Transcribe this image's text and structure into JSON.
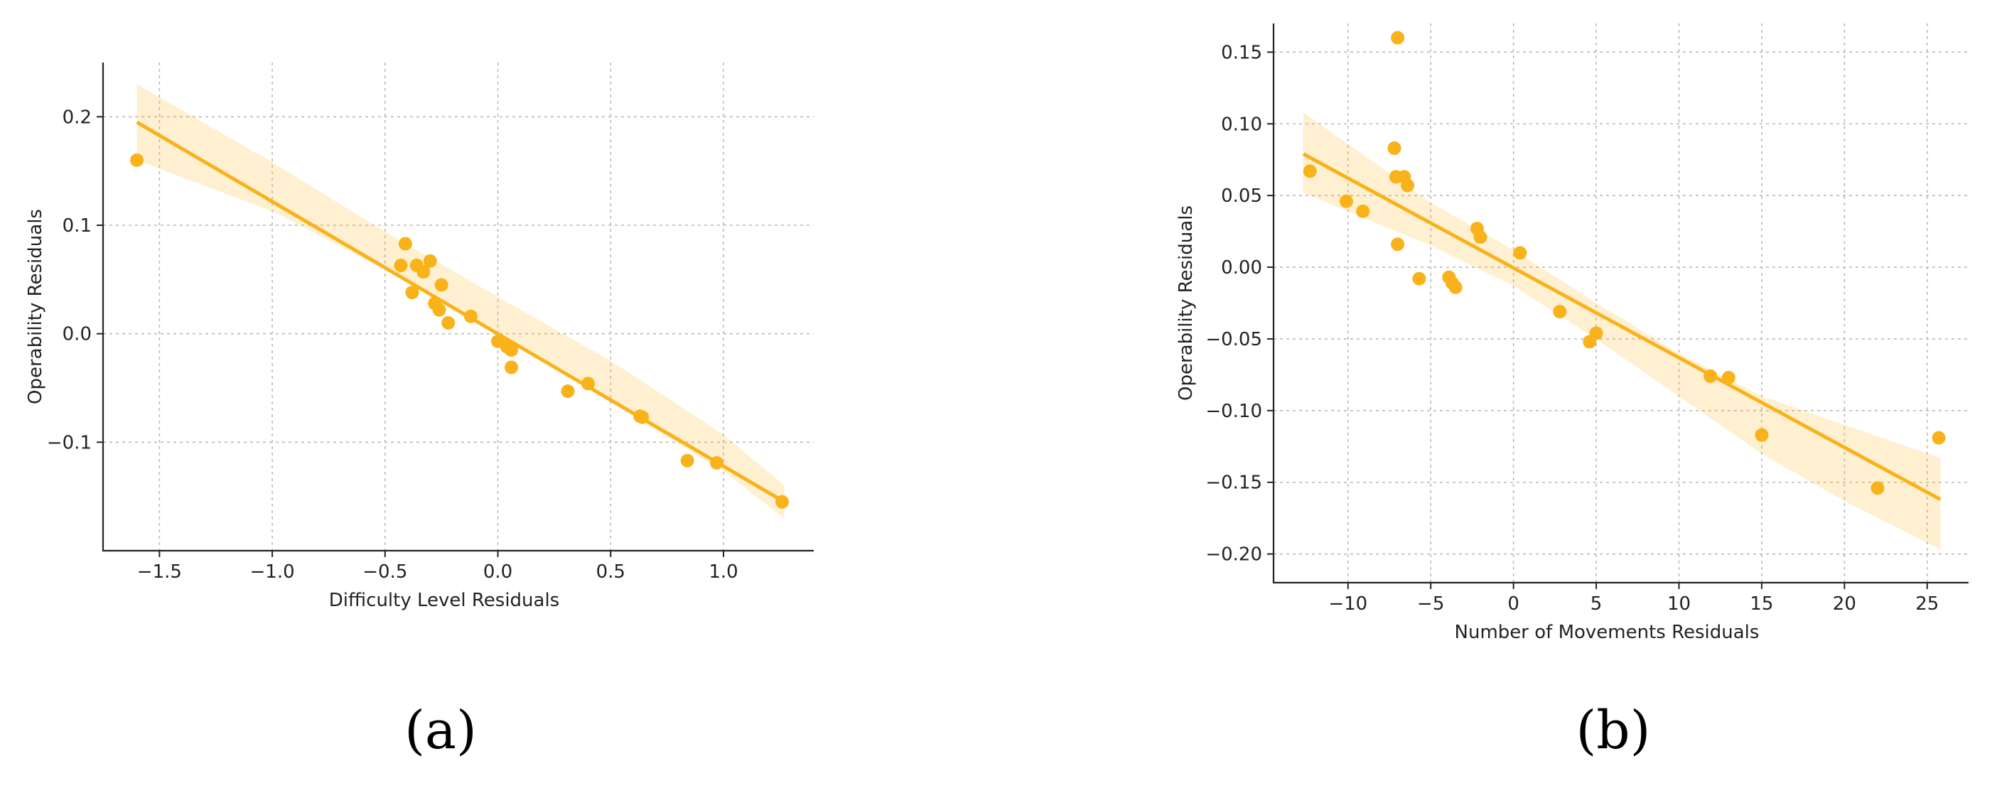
{
  "chart_data": [
    {
      "type": "scatter",
      "panel_label": "(a)",
      "xlabel": "Difficulty Level Residuals",
      "ylabel": "Operability Residuals",
      "xlim": [
        -1.75,
        1.4
      ],
      "ylim": [
        -0.2,
        0.25
      ],
      "xticks": [
        -1.5,
        -1.0,
        -0.5,
        0.0,
        0.5,
        1.0
      ],
      "xtick_labels": [
        "−1.5",
        "−1.0",
        "−0.5",
        "0.0",
        "0.5",
        "1.0"
      ],
      "yticks": [
        -0.1,
        0.0,
        0.1,
        0.2
      ],
      "ytick_labels": [
        "−0.1",
        "0.0",
        "0.1",
        "0.2"
      ],
      "grid": true,
      "color": "#F9B21A",
      "regression_line": [
        [
          -1.6,
          0.195
        ],
        [
          1.27,
          -0.155
        ]
      ],
      "confidence_band": {
        "x": [
          -1.6,
          -1.0,
          -0.5,
          0.0,
          0.5,
          1.0,
          1.27
        ],
        "upper": [
          0.23,
          0.158,
          0.094,
          0.034,
          -0.025,
          -0.093,
          -0.14
        ],
        "lower": [
          0.16,
          0.113,
          0.059,
          0.0,
          -0.063,
          -0.127,
          -0.17
        ]
      },
      "points": [
        [
          -1.6,
          0.16
        ],
        [
          -0.43,
          0.063
        ],
        [
          -0.41,
          0.083
        ],
        [
          -0.38,
          0.038
        ],
        [
          -0.36,
          0.063
        ],
        [
          -0.33,
          0.057
        ],
        [
          -0.3,
          0.067
        ],
        [
          -0.28,
          0.028
        ],
        [
          -0.26,
          0.022
        ],
        [
          -0.25,
          0.045
        ],
        [
          -0.22,
          0.01
        ],
        [
          -0.12,
          0.016
        ],
        [
          0.0,
          -0.007
        ],
        [
          0.04,
          -0.012
        ],
        [
          0.06,
          -0.015
        ],
        [
          0.05,
          -0.013
        ],
        [
          0.06,
          -0.031
        ],
        [
          0.31,
          -0.053
        ],
        [
          0.4,
          -0.046
        ],
        [
          0.63,
          -0.076
        ],
        [
          0.64,
          -0.077
        ],
        [
          0.84,
          -0.117
        ],
        [
          0.97,
          -0.119
        ],
        [
          1.26,
          -0.155
        ]
      ]
    },
    {
      "type": "scatter",
      "panel_label": "(b)",
      "xlabel": "Number of Movements Residuals",
      "ylabel": "Operability Residuals",
      "xlim": [
        -14.5,
        27.5
      ],
      "ylim": [
        -0.22,
        0.17
      ],
      "xticks": [
        -10,
        -5,
        0,
        5,
        10,
        15,
        20,
        25
      ],
      "xtick_labels": [
        "−10",
        "−5",
        "0",
        "5",
        "10",
        "15",
        "20",
        "25"
      ],
      "yticks": [
        -0.2,
        -0.15,
        -0.1,
        -0.05,
        0.0,
        0.05,
        0.1,
        0.15
      ],
      "ytick_labels": [
        "−0.20",
        "−0.15",
        "−0.10",
        "−0.05",
        "0.00",
        "0.05",
        "0.10",
        "0.15"
      ],
      "grid": true,
      "color": "#F9B21A",
      "regression_line": [
        [
          -12.7,
          0.079
        ],
        [
          25.8,
          -0.162
        ]
      ],
      "confidence_band": {
        "x": [
          -12.7,
          -5.0,
          0.0,
          5.0,
          10.0,
          15.0,
          20.0,
          25.8
        ],
        "upper": [
          0.108,
          0.045,
          0.012,
          -0.025,
          -0.06,
          -0.09,
          -0.11,
          -0.133
        ],
        "lower": [
          0.052,
          0.015,
          -0.013,
          -0.05,
          -0.09,
          -0.13,
          -0.163,
          -0.197
        ]
      },
      "points": [
        [
          -12.3,
          0.067
        ],
        [
          -10.1,
          0.046
        ],
        [
          -9.1,
          0.039
        ],
        [
          -7.2,
          0.083
        ],
        [
          -7.1,
          0.063
        ],
        [
          -7.0,
          0.16
        ],
        [
          -6.6,
          0.063
        ],
        [
          -6.4,
          0.057
        ],
        [
          -7.0,
          0.016
        ],
        [
          -5.7,
          -0.008
        ],
        [
          -3.9,
          -0.007
        ],
        [
          -3.7,
          -0.011
        ],
        [
          -3.5,
          -0.014
        ],
        [
          -2.2,
          0.027
        ],
        [
          -2.0,
          0.021
        ],
        [
          0.4,
          0.01
        ],
        [
          2.8,
          -0.031
        ],
        [
          4.6,
          -0.052
        ],
        [
          5.0,
          -0.046
        ],
        [
          11.9,
          -0.076
        ],
        [
          13.0,
          -0.077
        ],
        [
          15.0,
          -0.117
        ],
        [
          22.0,
          -0.154
        ],
        [
          25.7,
          -0.119
        ]
      ]
    }
  ]
}
